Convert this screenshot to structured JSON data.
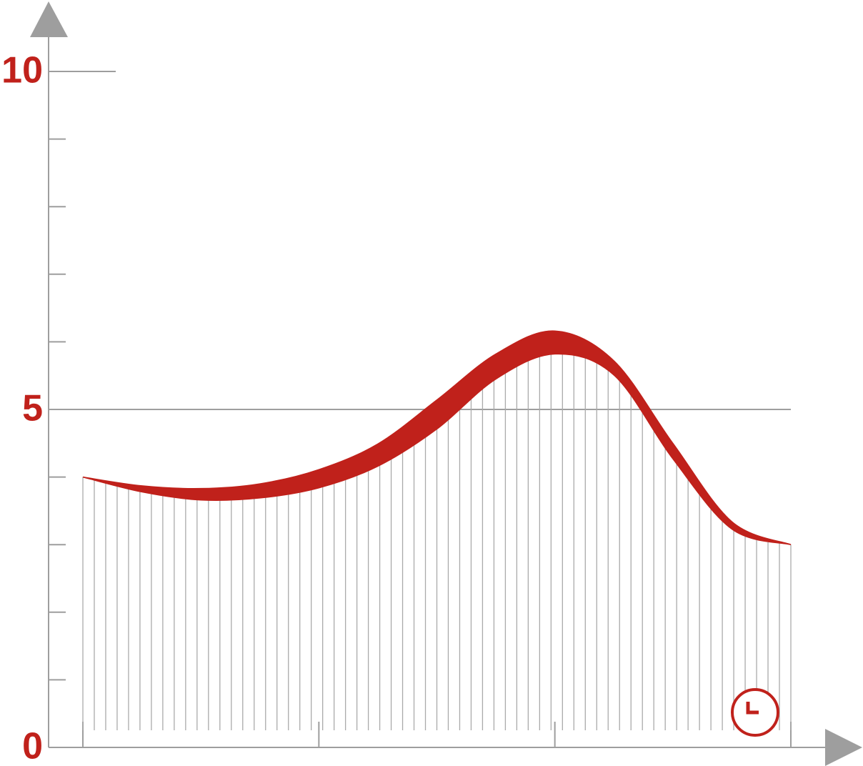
{
  "chart_data": {
    "type": "band",
    "categories": [
      null,
      null,
      null,
      null,
      null,
      null,
      null,
      null,
      null,
      null,
      null,
      null,
      null
    ],
    "series": [
      {
        "color": "#c0211b",
        "values": [
          4.0,
          3.87,
          3.83,
          3.9,
          4.11,
          4.49,
          5.14,
          5.82,
          6.16,
          5.72,
          4.5,
          3.34,
          3.0
        ]
      },
      {
        "color": "#c0211b",
        "values": [
          4.0,
          3.78,
          3.66,
          3.69,
          3.84,
          4.16,
          4.71,
          5.45,
          5.82,
          5.51,
          4.27,
          3.23,
          3.0
        ]
      }
    ],
    "ylim": [
      0,
      10
    ],
    "yticks": [
      0,
      5,
      10
    ],
    "yminorticks": [
      1,
      2,
      3,
      4,
      6,
      7,
      8,
      9
    ],
    "tick_label_color": "#c0211b",
    "axis_color": "#9e9e9e",
    "hatch": true
  }
}
